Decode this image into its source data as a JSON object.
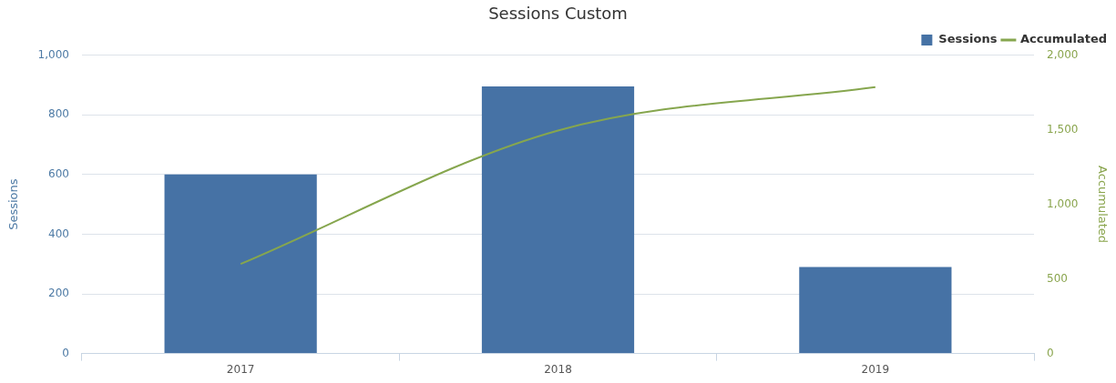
{
  "chart_data": {
    "type": "bar",
    "title": "Sessions Custom",
    "ylabel": "Sessions",
    "y2label": "Accumulated",
    "categories": [
      "2017",
      "2018",
      "2019"
    ],
    "series": [
      {
        "name": "Sessions",
        "color": "#4672a5",
        "values": [
          600,
          895,
          290
        ]
      },
      {
        "name": "Accumulated",
        "type": "line",
        "axis": "y2",
        "color": "#86a64e",
        "values": [
          600,
          1495,
          1785
        ]
      }
    ],
    "ylim": [
      0,
      1000
    ],
    "yticks": [
      0,
      200,
      400,
      600,
      800,
      {
        "value": 1000,
        "label": "1,000"
      }
    ],
    "y2lim": [
      0,
      2000
    ],
    "y2ticks": [
      0,
      500,
      {
        "value": 1000,
        "label": "1,000"
      },
      {
        "value": 1500,
        "label": "1,500"
      },
      {
        "value": 2000,
        "label": "2,000"
      }
    ],
    "grid": "y",
    "legend": "top right",
    "marker": "none",
    "line_style": "solid"
  }
}
